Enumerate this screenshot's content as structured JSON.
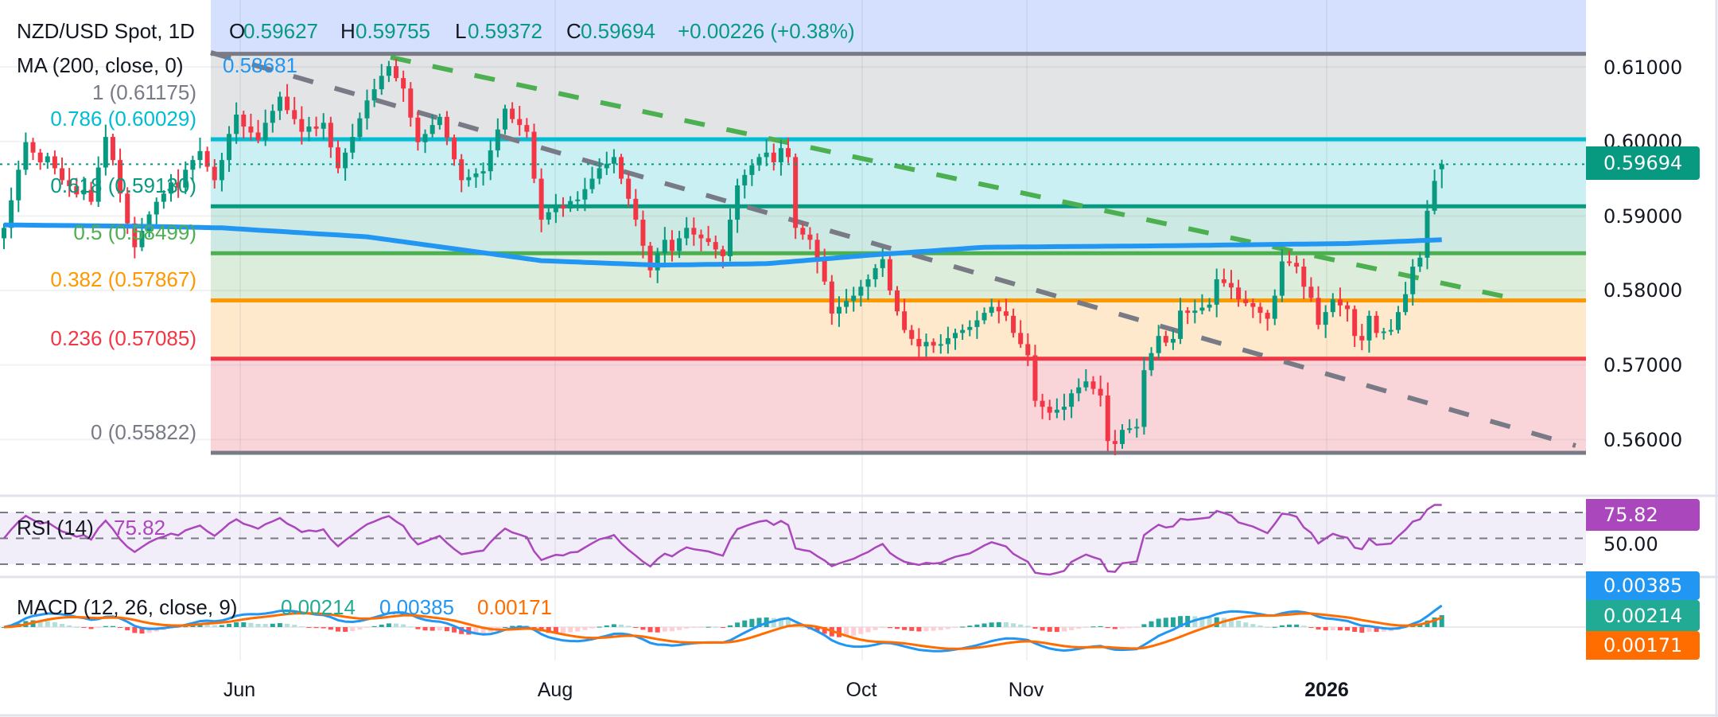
{
  "header": {
    "symbol": "NZD/USD Spot, 1D",
    "o_label": "O",
    "o": "0.59627",
    "h_label": "H",
    "h": "0.59755",
    "l_label": "L",
    "l": "0.59372",
    "c_label": "C",
    "c": "0.59694",
    "change": "+0.00226 (+0.38%)"
  },
  "ma": {
    "label": "MA (200, close, 0)",
    "value": "0.58681",
    "color": "#2196f3"
  },
  "fib": {
    "levels": [
      {
        "ratio": 1,
        "price": 0.61175,
        "label": "1 (0.61175)",
        "color": "#787b86",
        "zone": "#d4e0fd"
      },
      {
        "ratio": 0.786,
        "price": 0.60029,
        "label": "0.786 (0.60029)",
        "color": "#00bcd4",
        "zone": "#e3e4e6"
      },
      {
        "ratio": 0.618,
        "price": 0.5913,
        "label": "0.618 (0.59130)",
        "color": "#089981",
        "zone": "#cbf0f3"
      },
      {
        "ratio": 0.5,
        "price": 0.58499,
        "label": "0.5 (0.58499)",
        "color": "#4caf50",
        "zone": "#cde9e3"
      },
      {
        "ratio": 0.382,
        "price": 0.57867,
        "label": "0.382 (0.57867)",
        "color": "#ff9800",
        "zone": "#dceedb"
      },
      {
        "ratio": 0.236,
        "price": 0.57085,
        "label": "0.236 (0.57085)",
        "color": "#f23645",
        "zone": "#fee9cd"
      },
      {
        "ratio": 0,
        "price": 0.55822,
        "label": "0 (0.55822)",
        "color": "#787b86",
        "zone": "#f9d5da"
      }
    ]
  },
  "price_axis": {
    "ticks": [
      "0.61000",
      "0.60000",
      "0.59000",
      "0.58000",
      "0.57000",
      "0.56000"
    ],
    "last_price": "0.59694"
  },
  "rsi": {
    "label": "RSI (14)",
    "value": "75.82",
    "axis_value": "75.82",
    "axis_mid": "50.00",
    "color": "#ab47bc"
  },
  "macd": {
    "label": "MACD (12, 26, close, 9)",
    "hist": "0.00214",
    "macd": "0.00385",
    "signal": "0.00171",
    "hist_color": "#22ab94",
    "macd_color": "#2196f3",
    "signal_color": "#ff6d00"
  },
  "time_axis": {
    "ticks": [
      "Jun",
      "Aug",
      "Oct",
      "Nov",
      "2026"
    ]
  },
  "colors": {
    "up": "#089981",
    "down": "#f23645"
  },
  "chart_data": {
    "type": "candlestick",
    "title": "NZD/USD Spot, 1D",
    "x_ticks": [
      "Jun",
      "Aug",
      "Oct",
      "Nov",
      "2026"
    ],
    "y_ticks": [
      0.61,
      0.6,
      0.59,
      0.58,
      0.57,
      0.56
    ],
    "ylim": [
      0.555,
      0.615
    ],
    "grid": true,
    "close": [
      0.5884,
      0.5921,
      0.5962,
      0.5999,
      0.5985,
      0.5972,
      0.598,
      0.5964,
      0.5948,
      0.594,
      0.5929,
      0.5935,
      0.5919,
      0.5965,
      0.6006,
      0.5975,
      0.593,
      0.589,
      0.5858,
      0.588,
      0.5902,
      0.5919,
      0.593,
      0.5945,
      0.5938,
      0.5962,
      0.5975,
      0.5987,
      0.5966,
      0.5948,
      0.5975,
      0.601,
      0.6036,
      0.602,
      0.6012,
      0.6002,
      0.6025,
      0.6041,
      0.606,
      0.6042,
      0.603,
      0.6013,
      0.602,
      0.6017,
      0.6025,
      0.5992,
      0.5964,
      0.5985,
      0.6006,
      0.6031,
      0.6055,
      0.607,
      0.6088,
      0.6101,
      0.6085,
      0.6071,
      0.6032,
      0.5999,
      0.601,
      0.6022,
      0.6033,
      0.6005,
      0.5976,
      0.5948,
      0.5952,
      0.5957,
      0.596,
      0.5988,
      0.6016,
      0.6044,
      0.603,
      0.6022,
      0.6013,
      0.595,
      0.5895,
      0.5905,
      0.5914,
      0.591,
      0.592,
      0.5922,
      0.5936,
      0.595,
      0.5964,
      0.597,
      0.5979,
      0.595,
      0.5923,
      0.5895,
      0.586,
      0.5827,
      0.585,
      0.5868,
      0.5853,
      0.587,
      0.5884,
      0.5875,
      0.587,
      0.5865,
      0.5855,
      0.5846,
      0.5895,
      0.5941,
      0.5955,
      0.5968,
      0.5979,
      0.5985,
      0.5972,
      0.5991,
      0.5979,
      0.5884,
      0.5875,
      0.5868,
      0.584,
      0.5812,
      0.5769,
      0.5778,
      0.5786,
      0.5793,
      0.5805,
      0.5815,
      0.583,
      0.5842,
      0.58,
      0.5772,
      0.5747,
      0.5735,
      0.5725,
      0.5731,
      0.5726,
      0.5728,
      0.5736,
      0.5743,
      0.5747,
      0.5751,
      0.576,
      0.577,
      0.5778,
      0.5772,
      0.5766,
      0.5743,
      0.5728,
      0.5713,
      0.5652,
      0.5644,
      0.5636,
      0.564,
      0.5644,
      0.5662,
      0.567,
      0.5678,
      0.5668,
      0.5659,
      0.5598,
      0.5594,
      0.5613,
      0.5615,
      0.5617,
      0.5693,
      0.5716,
      0.5739,
      0.573,
      0.5735,
      0.5773,
      0.577,
      0.5773,
      0.5777,
      0.5781,
      0.5815,
      0.581,
      0.5804,
      0.5788,
      0.5783,
      0.5778,
      0.577,
      0.5762,
      0.5793,
      0.5839,
      0.5837,
      0.5832,
      0.5805,
      0.579,
      0.5754,
      0.5771,
      0.5788,
      0.578,
      0.5775,
      0.5739,
      0.5733,
      0.5766,
      0.5743,
      0.5745,
      0.5747,
      0.5771,
      0.5795,
      0.5832,
      0.5844,
      0.5907,
      0.5947,
      0.59694
    ],
    "last_bar": {
      "open": 0.59627,
      "high": 0.59755,
      "low": 0.59372,
      "close": 0.59694
    },
    "ma_200_last": 0.58681,
    "rsi_last": 75.82,
    "rsi_levels": [
      70,
      50,
      30
    ],
    "macd_last": {
      "macd": 0.00385,
      "signal": 0.00171,
      "hist": 0.00214
    }
  }
}
